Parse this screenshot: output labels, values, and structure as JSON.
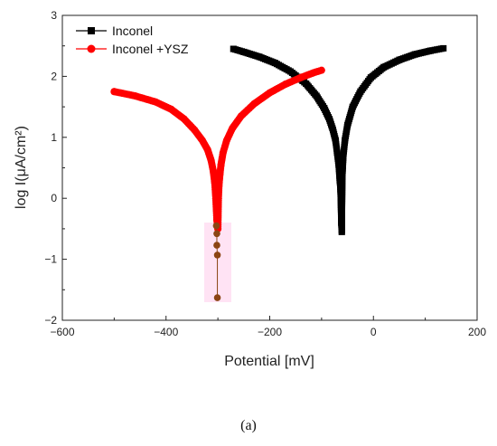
{
  "chart_data": {
    "type": "line",
    "panel_label": "(a)",
    "xlabel": "Potential [mV]",
    "ylabel": "log I(μA/cm²)",
    "xlim": [
      -600,
      200
    ],
    "ylim": [
      -2,
      3
    ],
    "x_ticks": [
      -600,
      -400,
      -200,
      0,
      200
    ],
    "y_ticks": [
      -2,
      -1,
      0,
      1,
      2,
      3
    ],
    "x_tick_labels": [
      "−600",
      "−400",
      "−200",
      "0",
      "200"
    ],
    "y_tick_labels": [
      "−2",
      "−1",
      "0",
      "1",
      "2",
      "3"
    ],
    "grid": false,
    "legend": "top-left",
    "series": [
      {
        "name": "Inconel",
        "color": "#000000",
        "marker": "square",
        "x": [
          -270,
          -250,
          -220,
          -190,
          -160,
          -130,
          -110,
          -95,
          -85,
          -78,
          -73,
          -70,
          -67,
          -65,
          -64,
          -63,
          -62,
          -61,
          -60,
          -58,
          -55,
          -50,
          -40,
          -25,
          -5,
          20,
          50,
          80,
          110,
          135
        ],
        "y": [
          2.45,
          2.4,
          2.32,
          2.22,
          2.08,
          1.88,
          1.68,
          1.48,
          1.3,
          1.12,
          0.95,
          0.75,
          0.55,
          0.3,
          0.22,
          0.0,
          -0.4,
          -0.55,
          0.35,
          0.7,
          0.95,
          1.2,
          1.5,
          1.75,
          1.98,
          2.15,
          2.27,
          2.36,
          2.42,
          2.46
        ]
      },
      {
        "name": "Inconel +YSZ",
        "color": "#ff0000",
        "marker": "circle",
        "x": [
          -500,
          -460,
          -420,
          -390,
          -365,
          -345,
          -330,
          -320,
          -313,
          -309,
          -306,
          -304,
          -302,
          -300,
          -299,
          -298,
          -296,
          -294,
          -290,
          -283,
          -272,
          -255,
          -230,
          -200,
          -170,
          -140,
          -115,
          -100
        ],
        "y": [
          1.75,
          1.68,
          1.58,
          1.46,
          1.3,
          1.12,
          0.95,
          0.8,
          0.62,
          0.45,
          0.25,
          0.0,
          -0.35,
          -0.5,
          0.0,
          0.2,
          0.4,
          0.55,
          0.75,
          0.95,
          1.15,
          1.35,
          1.55,
          1.73,
          1.87,
          1.98,
          2.06,
          2.1
        ]
      },
      {
        "name": "",
        "color": "#8b4513",
        "marker": "circle",
        "x": [
          -303,
          -302,
          -302,
          -301,
          -301
        ],
        "y": [
          -0.45,
          -0.58,
          -0.77,
          -0.93,
          -1.63
        ]
      }
    ]
  }
}
